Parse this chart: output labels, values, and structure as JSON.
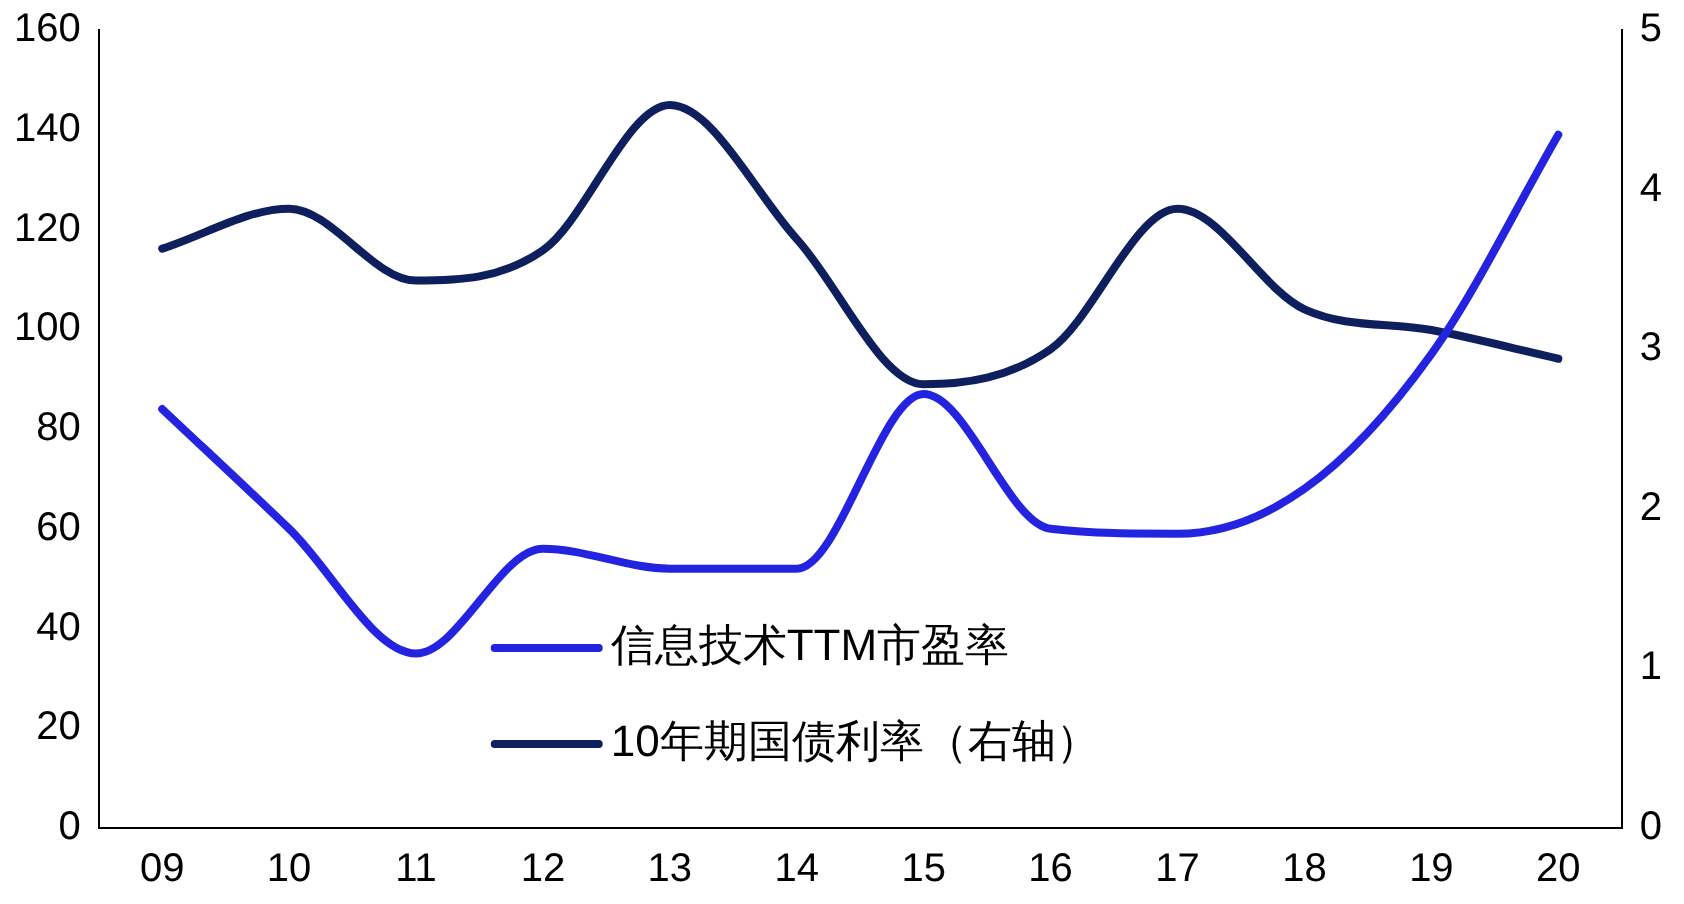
{
  "chart_data": {
    "type": "line",
    "categories": [
      "09",
      "10",
      "11",
      "12",
      "13",
      "14",
      "15",
      "16",
      "17",
      "18",
      "19",
      "20"
    ],
    "series": [
      {
        "name": "信息技术TTM市盈率",
        "color": "#2424e0",
        "values": [
          84,
          60,
          35,
          56,
          52,
          52,
          87,
          60,
          59,
          68,
          95,
          139
        ]
      },
      {
        "name": "10年期国债利率（右轴）",
        "color": "#0d1f5c",
        "axis": "y2",
        "values": [
          3.63,
          3.88,
          3.43,
          3.62,
          4.53,
          3.69,
          2.78,
          3.0,
          3.88,
          3.25,
          3.12,
          2.94
        ]
      }
    ],
    "ylim": [
      0,
      160
    ],
    "yticks": [
      0,
      20,
      40,
      60,
      80,
      100,
      120,
      140,
      160
    ],
    "y2lim": [
      0,
      5
    ],
    "y2ticks": [
      0,
      1,
      2,
      3,
      4,
      5
    ],
    "grid": false,
    "legend": "bottom",
    "marker": "none",
    "line_style": "solid"
  }
}
